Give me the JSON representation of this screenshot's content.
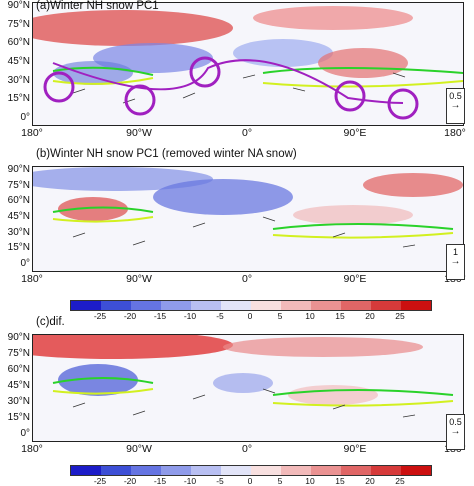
{
  "panels": [
    {
      "id": "a",
      "title": "(a)Winter NH snow PC1",
      "ref_value": "0.5"
    },
    {
      "id": "b",
      "title": "(b)Winter NH snow PC1 (removed winter NA snow)",
      "ref_value": "1"
    },
    {
      "id": "c",
      "title": "(c)dif.",
      "ref_value": "0.5"
    }
  ],
  "lat_labels": [
    "90°N",
    "75°N",
    "60°N",
    "45°N",
    "30°N",
    "15°N",
    "0°"
  ],
  "lon_labels": [
    "180°",
    "90°W",
    "0°",
    "90°E",
    "180°"
  ],
  "colorbar": {
    "ticks": [
      "-25",
      "-20",
      "-15",
      "-10",
      "-5",
      "0",
      "5",
      "10",
      "15",
      "20",
      "25"
    ],
    "colors": [
      "#1c1cc8",
      "#3d4fd6",
      "#6574e2",
      "#8f9bea",
      "#b8bff2",
      "#e2e4f8",
      "#f8e0e0",
      "#f2baba",
      "#ea9292",
      "#e06666",
      "#d63a3a",
      "#cc1010"
    ]
  },
  "ref_arrow": "→"
}
